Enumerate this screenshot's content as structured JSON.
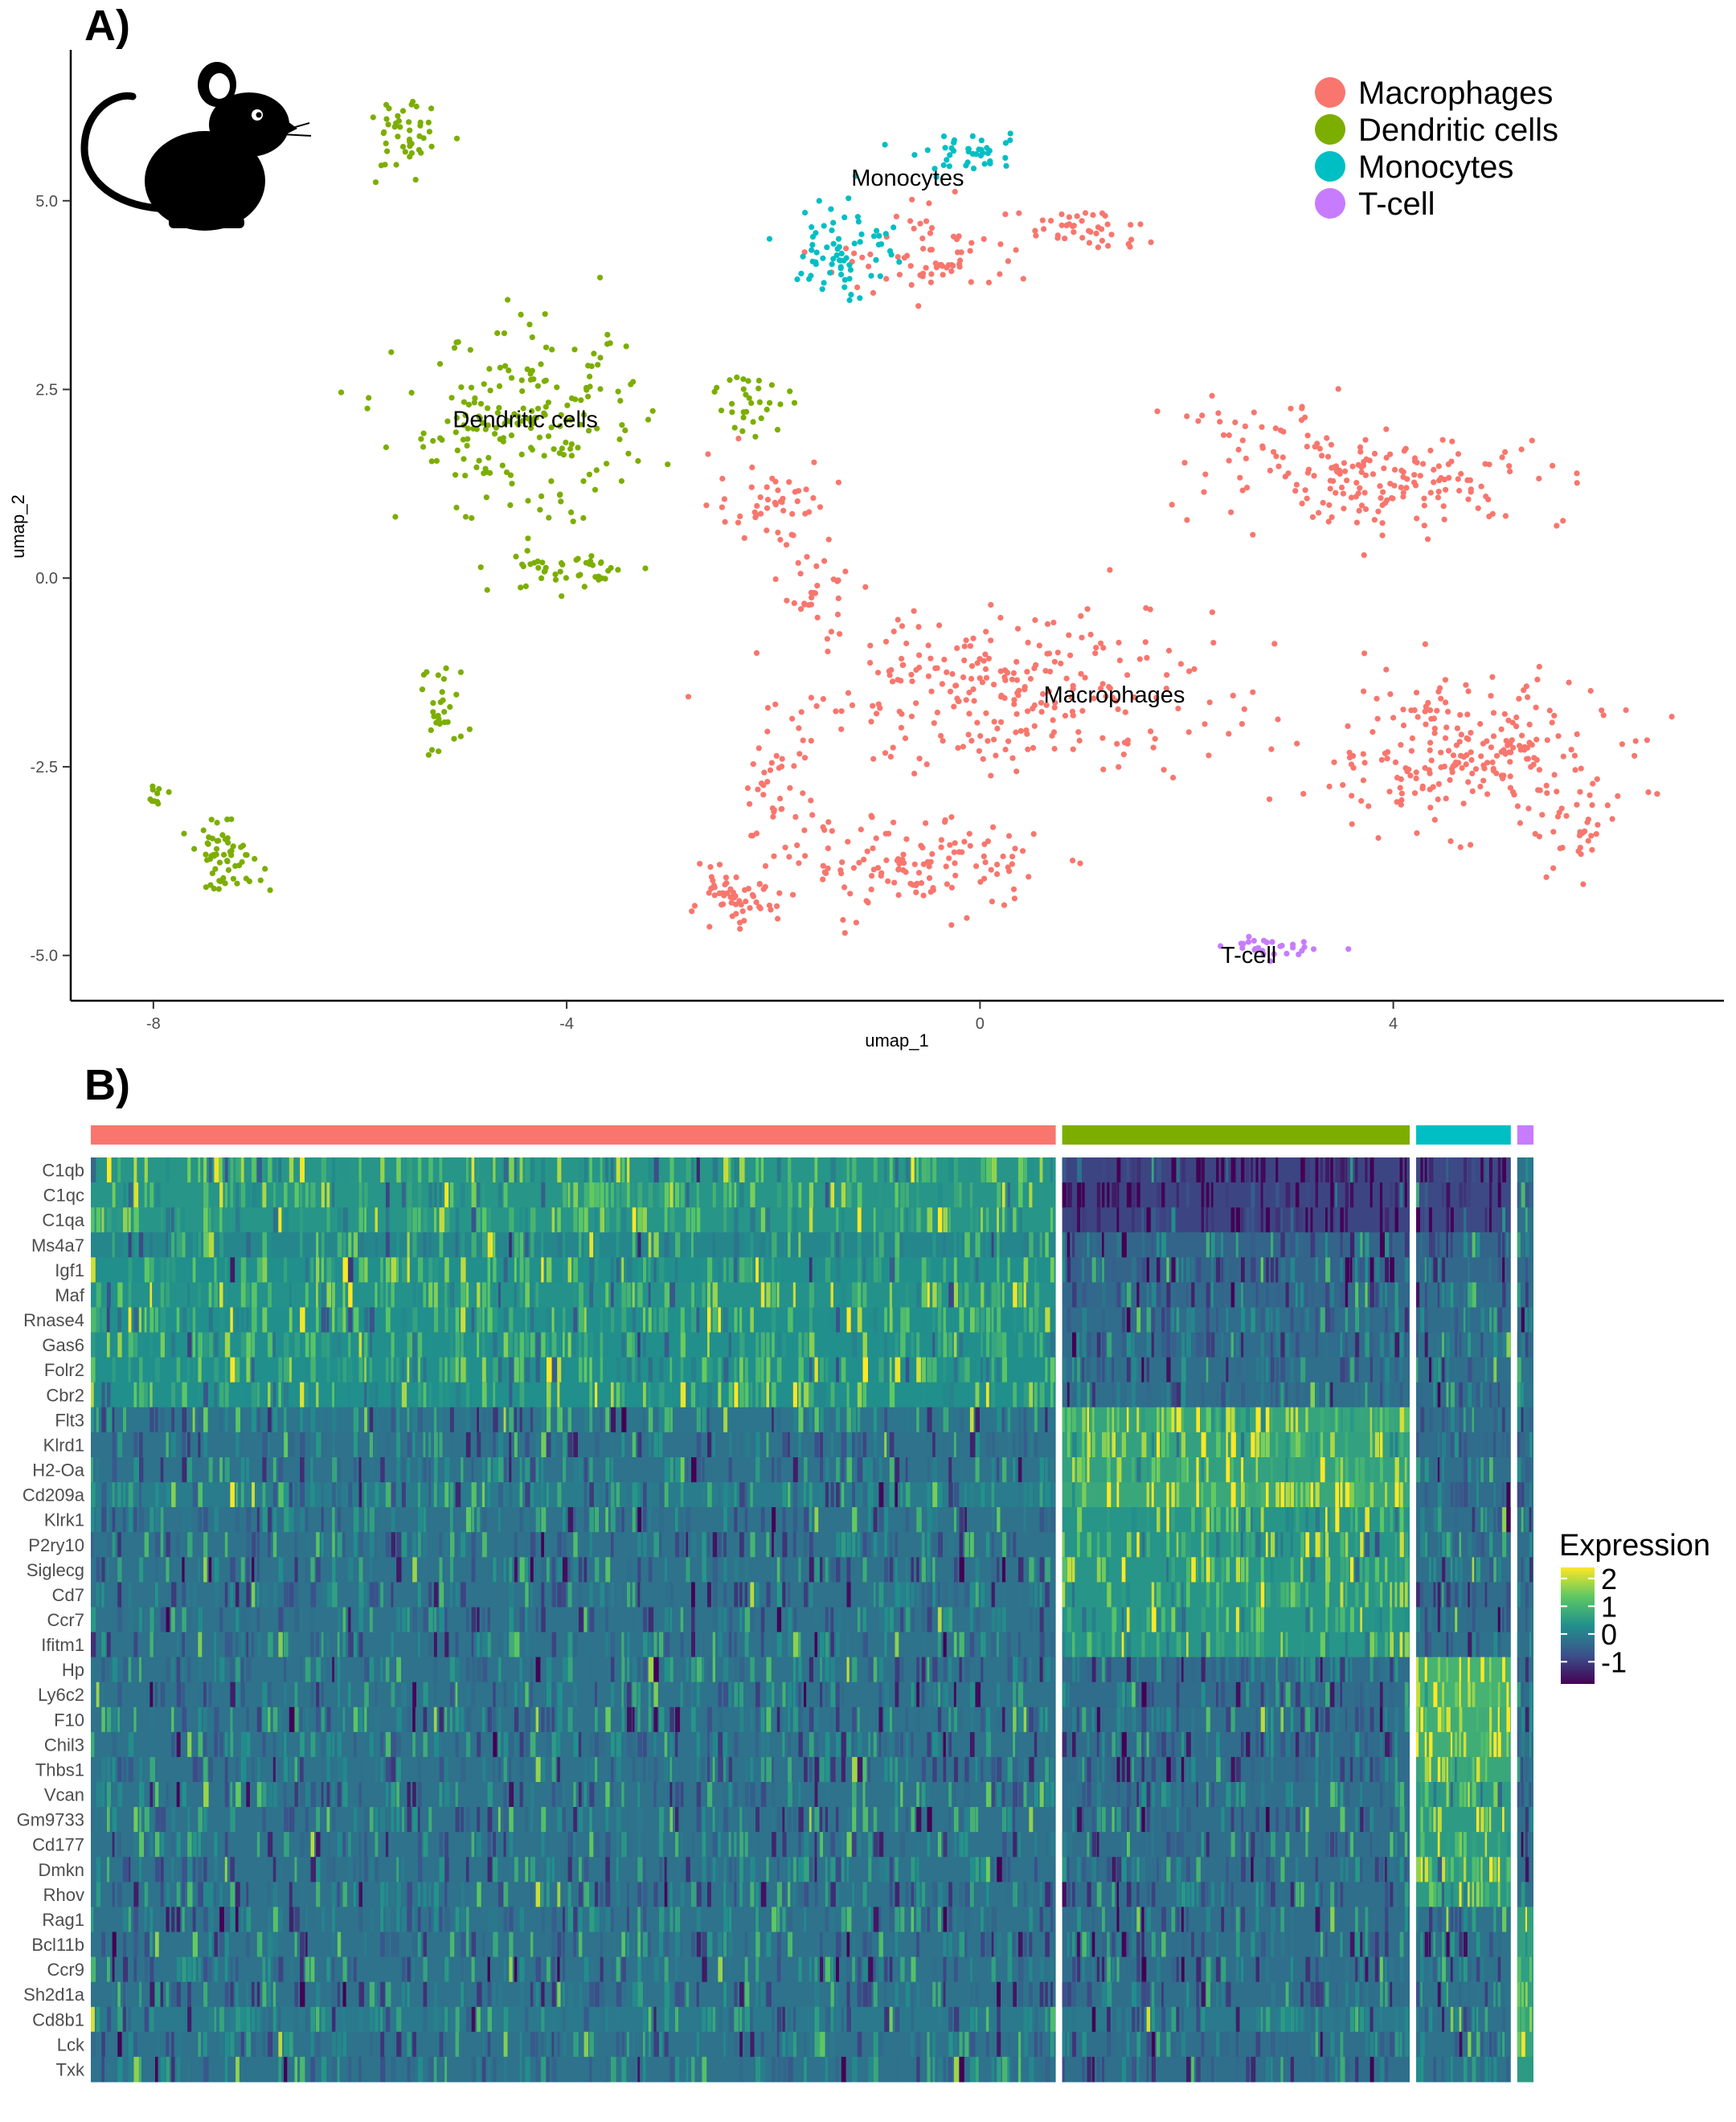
{
  "panel_a": {
    "label": "A)",
    "chart_data": {
      "type": "scatter",
      "title": "",
      "xlabel": "umap_1",
      "ylabel": "umap_2",
      "xlim": [
        -8.8,
        7.2
      ],
      "ylim": [
        -5.6,
        7.0
      ],
      "x_ticks": [
        -8,
        -4,
        0,
        4
      ],
      "x_tick_labels": [
        "-8",
        "-4",
        "0",
        "4"
      ],
      "y_ticks": [
        -5.0,
        -2.5,
        0.0,
        2.5,
        5.0
      ],
      "y_tick_labels": [
        "-5.0",
        "-2.5",
        "0.0",
        "2.5",
        "5.0"
      ],
      "grid": false,
      "legend_position": "top-right",
      "series": [
        {
          "name": "Macrophages",
          "color": "#F8766D",
          "clusters": [
            {
              "center": [
                0.3,
                -1.5
              ],
              "spread": [
                1.6,
                0.9
              ],
              "n": 260
            },
            {
              "center": [
                4.6,
                -2.3
              ],
              "spread": [
                1.2,
                0.8
              ],
              "n": 230
            },
            {
              "center": [
                -0.6,
                -3.8
              ],
              "spread": [
                1.0,
                0.5
              ],
              "n": 130
            },
            {
              "center": [
                -2.4,
                -4.3
              ],
              "spread": [
                0.35,
                0.3
              ],
              "n": 55
            },
            {
              "center": [
                -2.0,
                -2.8
              ],
              "spread": [
                0.3,
                0.9
              ],
              "n": 45
            },
            {
              "center": [
                4.0,
                1.3
              ],
              "spread": [
                1.4,
                0.5
              ],
              "n": 170
            },
            {
              "center": [
                -2.0,
                1.0
              ],
              "spread": [
                0.5,
                0.5
              ],
              "n": 50
            },
            {
              "center": [
                -0.4,
                4.3
              ],
              "spread": [
                0.8,
                0.5
              ],
              "n": 70
            },
            {
              "center": [
                1.0,
                4.6
              ],
              "spread": [
                0.5,
                0.25
              ],
              "n": 40
            },
            {
              "center": [
                5.8,
                -3.3
              ],
              "spread": [
                0.4,
                0.6
              ],
              "n": 40
            },
            {
              "center": [
                2.8,
                2.0
              ],
              "spread": [
                0.6,
                0.4
              ],
              "n": 30
            },
            {
              "center": [
                -1.6,
                -0.1
              ],
              "spread": [
                0.3,
                0.4
              ],
              "n": 25
            }
          ]
        },
        {
          "name": "Dendritic cells",
          "color": "#7CAE00",
          "clusters": [
            {
              "center": [
                -4.4,
                2.0
              ],
              "spread": [
                1.0,
                1.0
              ],
              "n": 200
            },
            {
              "center": [
                -4.0,
                0.1
              ],
              "spread": [
                0.6,
                0.25
              ],
              "n": 45
            },
            {
              "center": [
                -5.6,
                5.8
              ],
              "spread": [
                0.25,
                0.5
              ],
              "n": 45
            },
            {
              "center": [
                -7.3,
                -3.7
              ],
              "spread": [
                0.3,
                0.35
              ],
              "n": 60
            },
            {
              "center": [
                -5.2,
                -1.8
              ],
              "spread": [
                0.2,
                0.6
              ],
              "n": 30
            },
            {
              "center": [
                -2.2,
                2.4
              ],
              "spread": [
                0.3,
                0.4
              ],
              "n": 30
            },
            {
              "center": [
                -8.0,
                -2.9
              ],
              "spread": [
                0.15,
                0.15
              ],
              "n": 10
            }
          ]
        },
        {
          "name": "Monocytes",
          "color": "#00BFC4",
          "clusters": [
            {
              "center": [
                -1.3,
                4.4
              ],
              "spread": [
                0.4,
                0.6
              ],
              "n": 70
            },
            {
              "center": [
                -0.1,
                5.6
              ],
              "spread": [
                0.45,
                0.2
              ],
              "n": 40
            }
          ]
        },
        {
          "name": "T-cell",
          "color": "#C77CFF",
          "clusters": [
            {
              "center": [
                2.9,
                -4.9
              ],
              "spread": [
                0.45,
                0.1
              ],
              "n": 28
            }
          ]
        }
      ],
      "annotations": [
        {
          "text": "Monocytes",
          "x": -0.7,
          "y": 5.2
        },
        {
          "text": "Dendritic cells",
          "x": -4.4,
          "y": 2.0
        },
        {
          "text": "Macrophages",
          "x": 1.3,
          "y": -1.65
        },
        {
          "text": "T-cell",
          "x": 2.6,
          "y": -5.1
        }
      ]
    }
  },
  "panel_b": {
    "label": "B)",
    "chart_data": {
      "type": "heatmap",
      "title": "",
      "legend_title": "Expression",
      "legend_position": "right",
      "color_scale": [
        "#440154",
        "#3B528B",
        "#21908C",
        "#5DC863",
        "#FDE725"
      ],
      "value_range": [
        -1.8,
        2.4
      ],
      "legend_ticks": [
        2,
        1,
        0,
        -1
      ],
      "legend_tick_labels": [
        "2",
        "1",
        "0",
        "-1"
      ],
      "groups": [
        {
          "name": "Macrophages",
          "color": "#F8766D",
          "cells": 1305
        },
        {
          "name": "Dendritic cells",
          "color": "#7CAE00",
          "cells": 470
        },
        {
          "name": "Monocytes",
          "color": "#00BFC4",
          "cells": 128
        },
        {
          "name": "T-cell",
          "color": "#C77CFF",
          "cells": 22
        }
      ],
      "genes": [
        "C1qb",
        "C1qc",
        "C1qa",
        "Ms4a7",
        "Igf1",
        "Maf",
        "Rnase4",
        "Gas6",
        "Folr2",
        "Cbr2",
        "Flt3",
        "Klrd1",
        "H2-Oa",
        "Cd209a",
        "Klrk1",
        "P2ry10",
        "Siglecg",
        "Cd7",
        "Ccr7",
        "Ifitm1",
        "Hp",
        "Ly6c2",
        "F10",
        "Chil3",
        "Thbs1",
        "Vcan",
        "Gm9733",
        "Cd177",
        "Dmkn",
        "Rhov",
        "Rag1",
        "Bcl11b",
        "Ccr9",
        "Sh2d1a",
        "Cd8b1",
        "Lck",
        "Txk"
      ],
      "mean_expression": {
        "Macrophages": [
          1.0,
          1.0,
          1.0,
          0.5,
          0.8,
          0.9,
          0.8,
          0.8,
          0.8,
          0.8,
          0.0,
          -0.1,
          -0.1,
          0.2,
          -0.1,
          -0.1,
          -0.1,
          -0.1,
          -0.1,
          -0.1,
          -0.1,
          -0.1,
          -0.1,
          -0.1,
          -0.1,
          -0.1,
          -0.1,
          -0.1,
          -0.1,
          -0.1,
          -0.1,
          -0.1,
          -0.1,
          -0.1,
          0.1,
          -0.1,
          -0.1
        ],
        "Dendritic cells": [
          -1.4,
          -1.4,
          -1.4,
          -0.5,
          -0.5,
          -0.4,
          -0.3,
          -0.3,
          -0.2,
          -0.2,
          1.5,
          1.4,
          1.4,
          1.6,
          1.0,
          1.0,
          1.0,
          1.0,
          1.0,
          1.0,
          -0.3,
          -0.3,
          -0.2,
          -0.3,
          -0.3,
          -0.2,
          -0.2,
          -0.2,
          -0.2,
          -0.2,
          -0.2,
          -0.2,
          -0.2,
          -0.2,
          0.1,
          -0.2,
          -0.2
        ],
        "Monocytes": [
          -1.3,
          -1.3,
          -1.3,
          -0.5,
          -0.4,
          -0.2,
          -0.3,
          -0.1,
          -0.2,
          -0.3,
          -0.2,
          -0.3,
          -0.2,
          -0.3,
          -0.2,
          -0.3,
          -0.2,
          -0.3,
          -0.2,
          -0.1,
          2.0,
          2.0,
          1.8,
          1.8,
          1.6,
          1.2,
          1.2,
          1.2,
          1.2,
          1.2,
          -0.1,
          -0.1,
          -0.1,
          -0.1,
          -0.1,
          -0.1,
          -0.1
        ],
        "T-cell": [
          -0.1,
          -0.1,
          -0.1,
          -0.2,
          -0.3,
          -0.2,
          -0.3,
          0.0,
          0.0,
          0.0,
          -0.2,
          -0.2,
          -0.2,
          -0.2,
          -0.2,
          -0.2,
          -0.2,
          -0.2,
          -0.2,
          -0.2,
          -0.2,
          -0.2,
          -0.2,
          -0.2,
          -0.2,
          -0.2,
          -0.2,
          -0.2,
          -0.2,
          -0.2,
          1.4,
          1.4,
          1.3,
          1.3,
          1.5,
          1.5,
          1.2
        ]
      }
    }
  }
}
